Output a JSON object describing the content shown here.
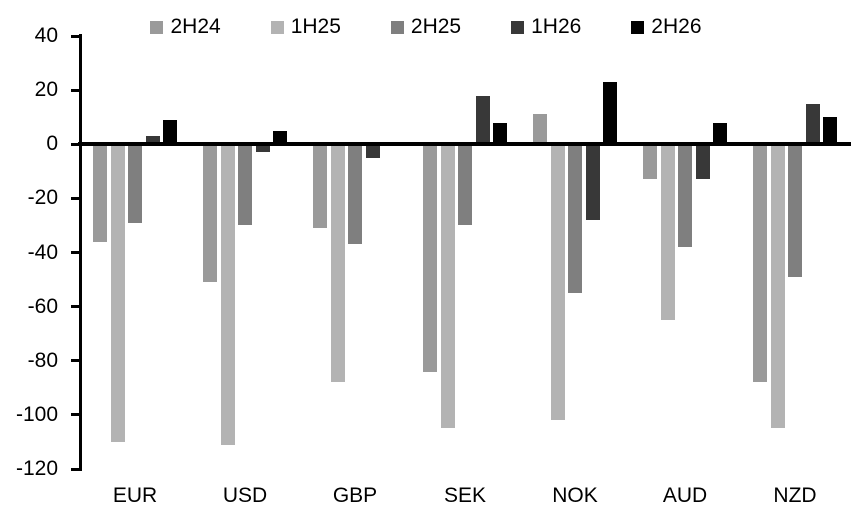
{
  "figure": {
    "background_color": "#ffffff",
    "axis_color": "#000000",
    "text_color": "#000000"
  },
  "chart_data": {
    "type": "bar",
    "title": "",
    "xlabel": "",
    "ylabel": "",
    "grid": false,
    "legend_position": "top-center",
    "categories": [
      "EUR",
      "USD",
      "GBP",
      "SEK",
      "NOK",
      "AUD",
      "NZD"
    ],
    "series": [
      {
        "name": "2H24",
        "color": "#9a9a9a",
        "values": [
          -36,
          -51,
          -31,
          -84,
          11,
          -13,
          -88
        ]
      },
      {
        "name": "1H25",
        "color": "#b3b3b3",
        "values": [
          -110,
          -111,
          -88,
          -105,
          -102,
          -65,
          -105
        ]
      },
      {
        "name": "2H25",
        "color": "#7f7f7f",
        "values": [
          -29,
          -30,
          -37,
          -30,
          -55,
          -38,
          -49
        ]
      },
      {
        "name": "1H26",
        "color": "#383838",
        "values": [
          3,
          -3,
          -5,
          18,
          -28,
          -13,
          15
        ]
      },
      {
        "name": "2H26",
        "color": "#000000",
        "values": [
          9,
          5,
          0,
          8,
          23,
          8,
          10
        ]
      }
    ],
    "ylim": [
      -120,
      40
    ],
    "ytick_step": 20,
    "ytick_labels": [
      "40",
      "20",
      "0",
      "-20",
      "-40",
      "-60",
      "-80",
      "-100",
      "-120"
    ]
  }
}
